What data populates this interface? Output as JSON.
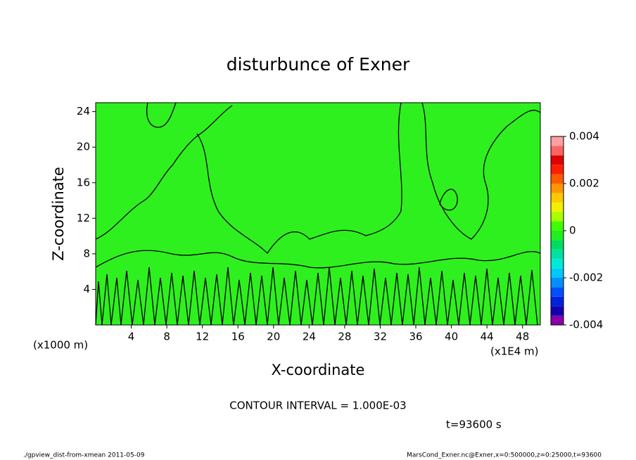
{
  "chart_data": {
    "type": "contour",
    "title": "disturbunce of Exner",
    "x_label": "X-coordinate",
    "y_label": "Z-coordinate",
    "x_unit_left": "(x1000 m)",
    "x_unit_right": "(x1E4 m)",
    "xlim": [
      0,
      50
    ],
    "xticks": [
      4,
      8,
      12,
      16,
      20,
      24,
      28,
      32,
      36,
      40,
      44,
      48
    ],
    "ylim": [
      0,
      25
    ],
    "yticks": [
      4,
      8,
      12,
      16,
      20,
      24
    ],
    "color": "#2ef01e",
    "colorbar": {
      "clim": [
        -0.004,
        0.004
      ],
      "ticks": [
        0.004,
        0.002,
        0,
        -0.002,
        -0.004
      ],
      "colors": [
        "#8a00a8",
        "#1000b0",
        "#0020e0",
        "#0050ff",
        "#0090ff",
        "#00c8ff",
        "#00e8d8",
        "#00e0a0",
        "#00dc60",
        "#20ee20",
        "#40ff00",
        "#a8ff00",
        "#f0f000",
        "#ffc800",
        "#ff9600",
        "#ff5a00",
        "#ff1e00",
        "#e00000",
        "#ff6464",
        "#ffa0a0"
      ]
    },
    "annotations": {
      "contour_interval": "CONTOUR INTERVAL = 1.000E-03",
      "time": "t=93600 s",
      "footer_left": "./gpview_dist-from-xmean  2011-05-09",
      "footer_right": "MarsCond_Exner.nc@Exner,x=0:500000,z=0:25000,t=93600"
    }
  }
}
